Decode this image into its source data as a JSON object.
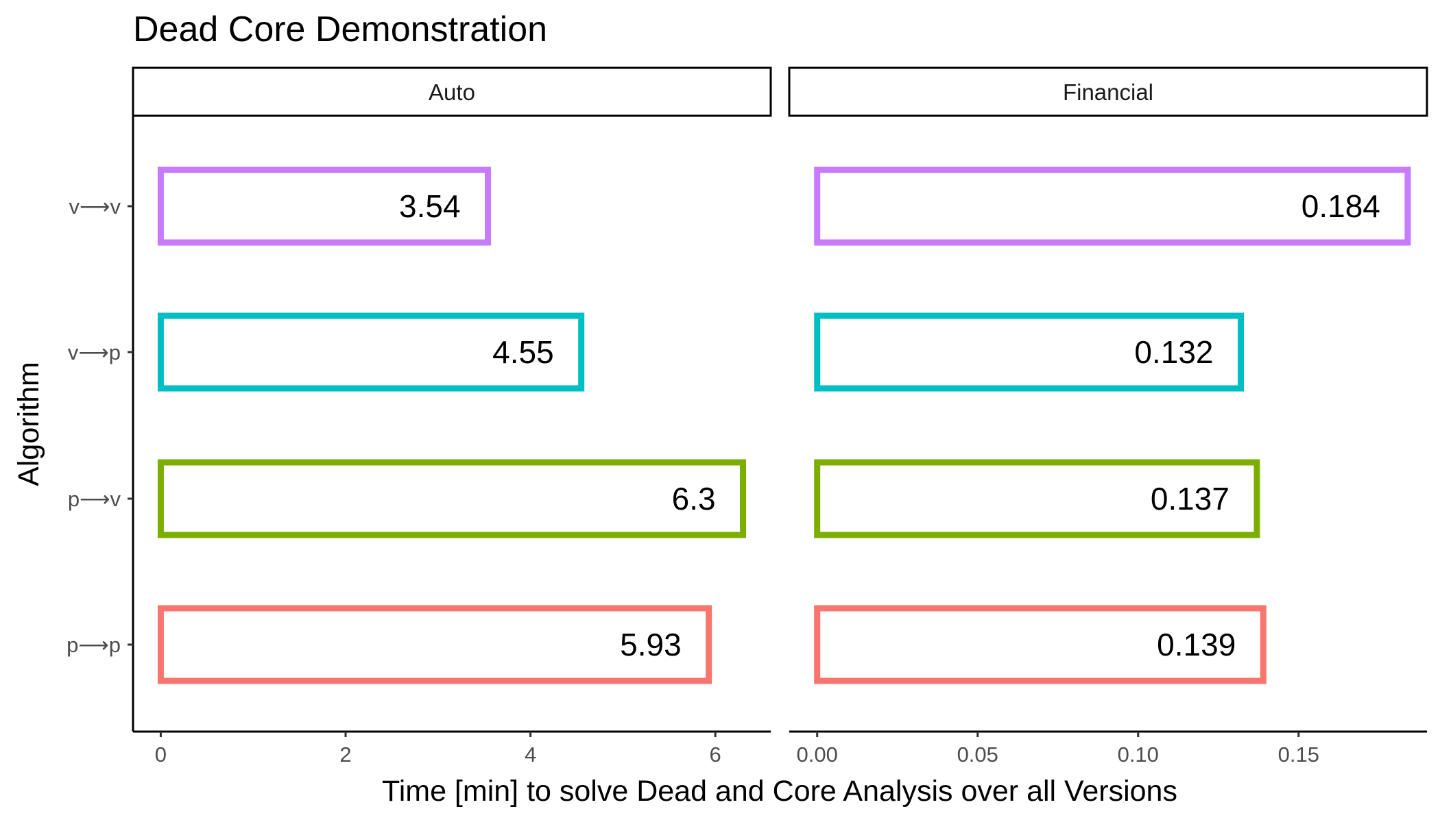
{
  "chart_data": {
    "type": "bar",
    "orientation": "horizontal",
    "title": "Dead Core Demonstration",
    "xlabel": "Time [min] to solve Dead and Core Analysis over all Versions",
    "ylabel": "Algorithm",
    "categories": [
      "v⟶v",
      "v⟶p",
      "p⟶v",
      "p⟶p"
    ],
    "colors": [
      "#C77CFF",
      "#00BFC4",
      "#7CAE00",
      "#F8766D"
    ],
    "grid": false,
    "legend": "none",
    "panels": [
      {
        "name": "Auto",
        "values": [
          3.54,
          4.55,
          6.3,
          5.93
        ],
        "labels": [
          "3.54",
          "4.55",
          "6.3",
          "5.93"
        ],
        "xlim": [
          -0.3,
          6.6
        ],
        "ticks": [
          0,
          2,
          4,
          6
        ],
        "tick_labels": [
          "0",
          "2",
          "4",
          "6"
        ]
      },
      {
        "name": "Financial",
        "values": [
          0.184,
          0.132,
          0.137,
          0.139
        ],
        "labels": [
          "0.184",
          "0.132",
          "0.137",
          "0.139"
        ],
        "xlim": [
          -0.0087,
          0.19
        ],
        "ticks": [
          0,
          0.05,
          0.1,
          0.15
        ],
        "tick_labels": [
          "0.00",
          "0.05",
          "0.10",
          "0.15"
        ]
      }
    ]
  }
}
